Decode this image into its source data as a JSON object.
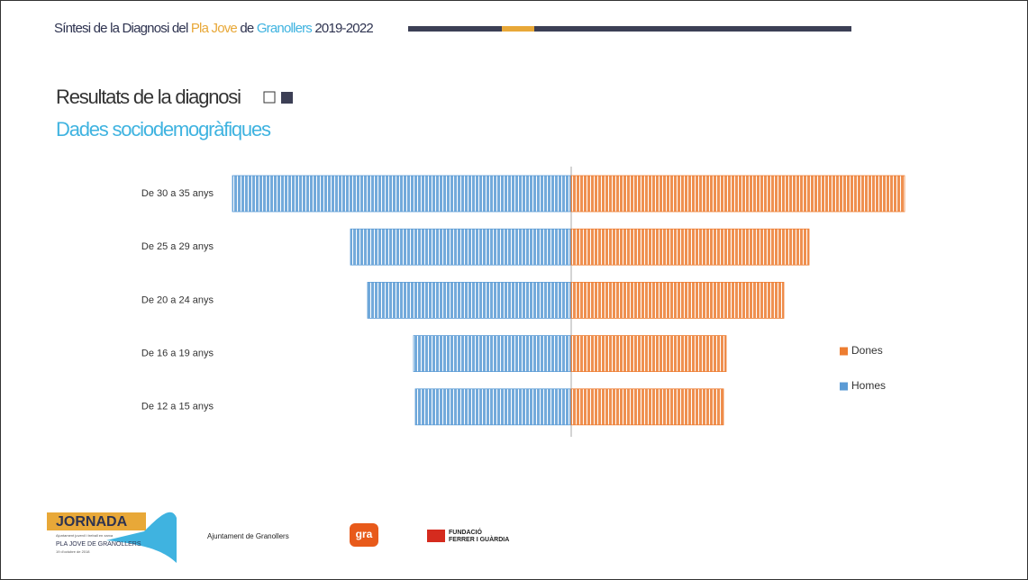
{
  "header": {
    "parts": [
      "Síntesi de la Diagnosi del ",
      "Pla Jove",
      " de ",
      "Granollers",
      " 2019-2022"
    ]
  },
  "chart_data": {
    "type": "bar",
    "title": "Resultats de la diagnosi",
    "subtitle": "Dades sociodemogràfiques",
    "orientation": "horizontal",
    "layout": "diverging",
    "categories": [
      "De 30 a 35 anys",
      "De 25 a 29 anys",
      "De 20 a 24 anys",
      "De 16 a 19 anys",
      "De 12 a 15 anys"
    ],
    "series": [
      {
        "name": "Homes",
        "color": "#5b9bd5",
        "values": [
          376,
          245,
          226,
          175,
          173
        ]
      },
      {
        "name": "Dones",
        "color": "#ed7d31",
        "values": [
          370,
          264,
          236,
          172,
          169
        ]
      }
    ],
    "xlim": [
      -400,
      400
    ],
    "legend": "right"
  },
  "footer": {
    "jornada": "JORNADA",
    "jornada_sub": "Ajuntament juvenil i treball en xarxa",
    "pla_jove": "PLA JOVE DE GRANOLLERS",
    "date": "19 d'octubre de 2018",
    "ajuntament": "Ajuntament de Granollers",
    "gra": "gra",
    "fundacio": "FUNDACIÓ",
    "fundacio2": "FERRER I GUÀRDIA"
  }
}
